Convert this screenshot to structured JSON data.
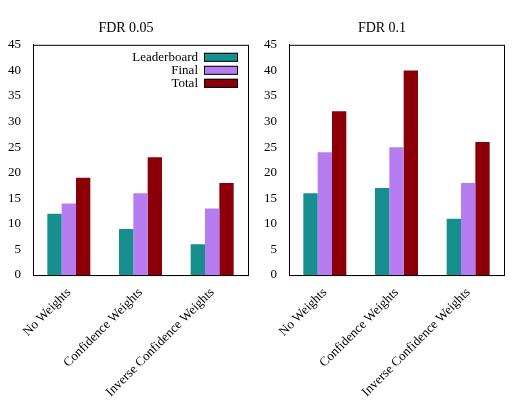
{
  "chart_data": [
    {
      "type": "bar",
      "title": "FDR 0.05",
      "categories": [
        "No Weights",
        "Confidence Weights",
        "Inverse Confidence Weights"
      ],
      "series": [
        {
          "name": "Leaderboard",
          "color": "#178f8f",
          "values": [
            12,
            9,
            6
          ]
        },
        {
          "name": "Final",
          "color": "#b77cf0",
          "values": [
            14,
            16,
            13
          ]
        },
        {
          "name": "Total",
          "color": "#8b0008",
          "values": [
            19,
            23,
            18
          ]
        }
      ],
      "ylim": [
        0,
        45
      ],
      "yticks": [
        0,
        5,
        10,
        15,
        20,
        25,
        30,
        35,
        40,
        45
      ],
      "grid": false,
      "legend": "top right"
    },
    {
      "type": "bar",
      "title": "FDR 0.1",
      "categories": [
        "No Weights",
        "Confidence Weights",
        "Inverse Confidence Weights"
      ],
      "series": [
        {
          "color": "#178f8f",
          "values": [
            16,
            17,
            11
          ]
        },
        {
          "color": "#b77cf0",
          "values": [
            24,
            25,
            18
          ]
        },
        {
          "color": "#8b0008",
          "values": [
            32,
            40,
            26
          ]
        }
      ],
      "ylim": [
        0,
        45
      ],
      "yticks": [
        0,
        5,
        10,
        15,
        20,
        25,
        30,
        35,
        40,
        45
      ],
      "grid": false
    }
  ]
}
